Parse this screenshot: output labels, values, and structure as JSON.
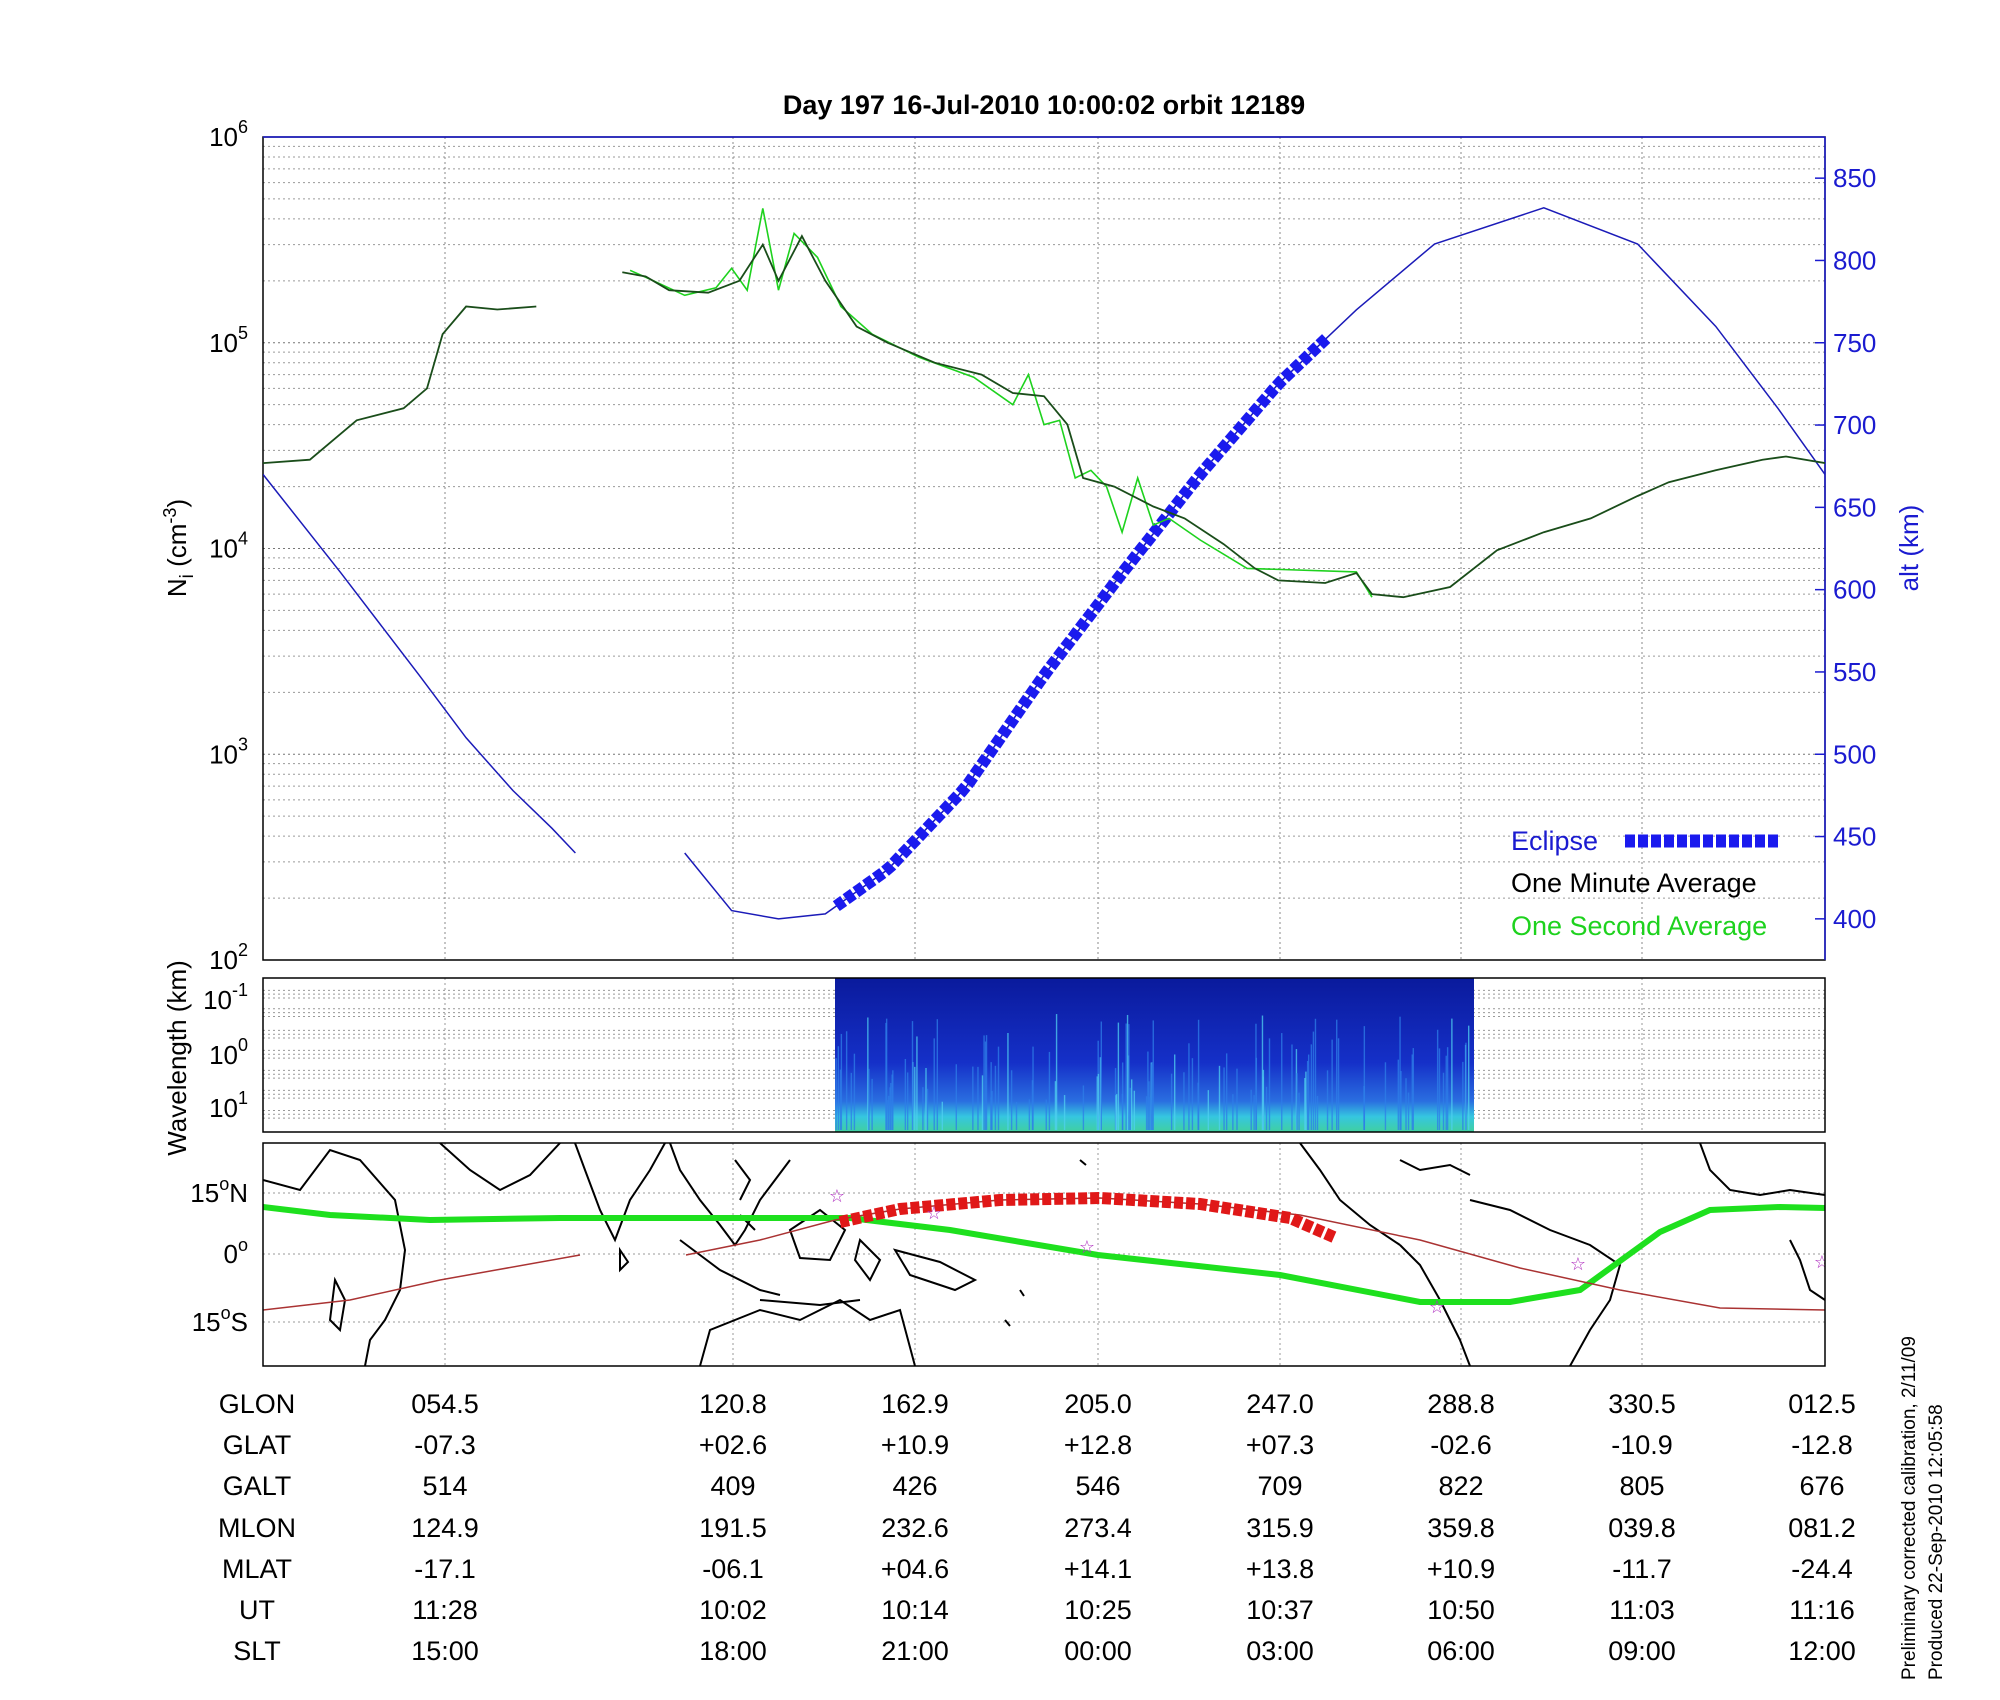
{
  "title": "Day 197  16-Jul-2010 10:00:02   orbit 12189",
  "main_panel": {
    "left_axis_label": "N",
    "left_axis_label_sub": "i",
    "left_axis_label_unit_pre": " (cm",
    "left_axis_label_unit_exp": "-3",
    "left_axis_label_unit_post": ")",
    "right_axis_label": "alt (km)",
    "left_ticks": [
      {
        "base": "10",
        "exp": "2",
        "value": 100
      },
      {
        "base": "10",
        "exp": "3",
        "value": 1000
      },
      {
        "base": "10",
        "exp": "4",
        "value": 10000
      },
      {
        "base": "10",
        "exp": "5",
        "value": 100000
      },
      {
        "base": "10",
        "exp": "6",
        "value": 1000000
      }
    ],
    "right_ticks": [
      "400",
      "450",
      "500",
      "550",
      "600",
      "650",
      "700",
      "750",
      "800",
      "850"
    ],
    "right_range": [
      375,
      875
    ],
    "legend": {
      "eclipse": "Eclipse",
      "one_minute": "One Minute Average",
      "one_second": "One Second Average"
    },
    "colors": {
      "altitude": "#1b1bb8",
      "eclipse": "#1a1aee",
      "minute": "#1a4d1a",
      "second": "#1ed21e"
    }
  },
  "spectrogram_panel": {
    "axis_label": "Wavelength (km)",
    "ticks": [
      {
        "base": "10",
        "exp": "-1"
      },
      {
        "base": "10",
        "exp": "0"
      },
      {
        "base": "10",
        "exp": "1"
      }
    ]
  },
  "map_panel": {
    "lat_ticks": [
      {
        "num": "15",
        "deg": "o",
        "hemi": "N"
      },
      {
        "num": "0",
        "deg": "o",
        "hemi": ""
      },
      {
        "num": "15",
        "deg": "o",
        "hemi": "S"
      }
    ]
  },
  "chart_data": {
    "type": "line",
    "x_labels": [
      "054.5",
      "120.8",
      "162.9",
      "205.0",
      "247.0",
      "288.8",
      "330.5",
      "012.5"
    ],
    "series": [
      {
        "name": "One Minute Average",
        "axis": "left",
        "scale": "log",
        "points": [
          [
            0,
            26000
          ],
          [
            0.3,
            27000
          ],
          [
            0.6,
            42000
          ],
          [
            0.9,
            48000
          ],
          [
            1.05,
            60000
          ],
          [
            1.15,
            110000
          ],
          [
            1.3,
            150000
          ],
          [
            1.5,
            145000
          ],
          [
            1.75,
            150000
          ],
          [
            2.3,
            220000
          ],
          [
            2.45,
            210000
          ],
          [
            2.6,
            180000
          ],
          [
            2.85,
            175000
          ],
          [
            3.05,
            200000
          ],
          [
            3.2,
            300000
          ],
          [
            3.3,
            200000
          ],
          [
            3.45,
            330000
          ],
          [
            3.6,
            200000
          ],
          [
            3.8,
            120000
          ],
          [
            4.0,
            100000
          ],
          [
            4.3,
            80000
          ],
          [
            4.6,
            70000
          ],
          [
            4.8,
            57000
          ],
          [
            5.0,
            55000
          ],
          [
            5.15,
            40000
          ],
          [
            5.25,
            22000
          ],
          [
            5.45,
            20000
          ],
          [
            5.7,
            16000
          ],
          [
            5.9,
            14000
          ],
          [
            6.15,
            10500
          ],
          [
            6.35,
            8000
          ],
          [
            6.5,
            7000
          ],
          [
            6.8,
            6800
          ],
          [
            7.0,
            7600
          ],
          [
            7.1,
            6000
          ],
          [
            7.3,
            5800
          ],
          [
            7.6,
            6500
          ],
          [
            7.9,
            9800
          ],
          [
            8.2,
            12000
          ],
          [
            8.5,
            14000
          ],
          [
            8.8,
            18000
          ],
          [
            9.0,
            21000
          ],
          [
            9.3,
            24000
          ],
          [
            9.6,
            27000
          ],
          [
            9.75,
            28000
          ],
          [
            10,
            26000
          ]
        ]
      },
      {
        "name": "One Second Average",
        "axis": "left",
        "scale": "log",
        "points": [
          [
            2.35,
            225000
          ],
          [
            2.5,
            200000
          ],
          [
            2.7,
            170000
          ],
          [
            2.9,
            185000
          ],
          [
            3.0,
            230000
          ],
          [
            3.1,
            180000
          ],
          [
            3.2,
            450000
          ],
          [
            3.3,
            180000
          ],
          [
            3.4,
            340000
          ],
          [
            3.55,
            260000
          ],
          [
            3.7,
            150000
          ],
          [
            3.9,
            110000
          ],
          [
            4.2,
            85000
          ],
          [
            4.55,
            68000
          ],
          [
            4.8,
            50000
          ],
          [
            4.9,
            70000
          ],
          [
            5.0,
            40000
          ],
          [
            5.1,
            42000
          ],
          [
            5.2,
            22000
          ],
          [
            5.3,
            24000
          ],
          [
            5.4,
            20000
          ],
          [
            5.5,
            12000
          ],
          [
            5.6,
            22000
          ],
          [
            5.7,
            13000
          ],
          [
            5.8,
            14000
          ],
          [
            6.0,
            11000
          ],
          [
            6.3,
            8000
          ],
          [
            7.0,
            7700
          ],
          [
            7.1,
            5800
          ]
        ]
      },
      {
        "name": "Altitude",
        "axis": "right",
        "points": [
          [
            0,
            670
          ],
          [
            0.5,
            610
          ],
          [
            1.0,
            548
          ],
          [
            1.3,
            510
          ],
          [
            1.6,
            478
          ],
          [
            1.85,
            455
          ],
          [
            2.0,
            440
          ],
          [
            2.7,
            440
          ],
          [
            3.0,
            405
          ],
          [
            3.3,
            400
          ],
          [
            3.6,
            403
          ],
          [
            4.0,
            430
          ],
          [
            4.5,
            480
          ],
          [
            5.0,
            548
          ],
          [
            5.5,
            610
          ],
          [
            6.0,
            670
          ],
          [
            6.5,
            725
          ],
          [
            7.0,
            770
          ],
          [
            7.5,
            810
          ],
          [
            8.2,
            832
          ],
          [
            8.8,
            810
          ],
          [
            9.3,
            760
          ],
          [
            9.7,
            710
          ],
          [
            10,
            670
          ]
        ]
      }
    ],
    "eclipse_x_range": [
      3.67,
      6.86
    ],
    "spectrogram_x_range": [
      3.67,
      7.75
    ],
    "table": {
      "labels": [
        "GLON",
        "GLAT",
        "GALT",
        "MLON",
        "MLAT",
        "UT",
        "SLT"
      ],
      "rows": [
        [
          "054.5",
          "120.8",
          "162.9",
          "205.0",
          "247.0",
          "288.8",
          "330.5",
          "012.5"
        ],
        [
          "-07.3",
          "+02.6",
          "+10.9",
          "+12.8",
          "+07.3",
          "-02.6",
          "-10.9",
          "-12.8"
        ],
        [
          "514",
          "409",
          "426",
          "546",
          "709",
          "822",
          "805",
          "676"
        ],
        [
          "124.9",
          "191.5",
          "232.6",
          "273.4",
          "315.9",
          "359.8",
          "039.8",
          "081.2"
        ],
        [
          "-17.1",
          "-06.1",
          "+04.6",
          "+14.1",
          "+13.8",
          "+10.9",
          "-11.7",
          "-24.4"
        ],
        [
          "11:28",
          "10:02",
          "10:14",
          "10:25",
          "10:37",
          "10:50",
          "11:03",
          "11:16"
        ],
        [
          "15:00",
          "18:00",
          "21:00",
          "00:00",
          "03:00",
          "06:00",
          "09:00",
          "12:00"
        ]
      ]
    }
  },
  "footnote": {
    "line1": "Preliminary corrected calibration, 2/11/09",
    "line2": "Produced 22-Sep-2010 12:05:58"
  }
}
